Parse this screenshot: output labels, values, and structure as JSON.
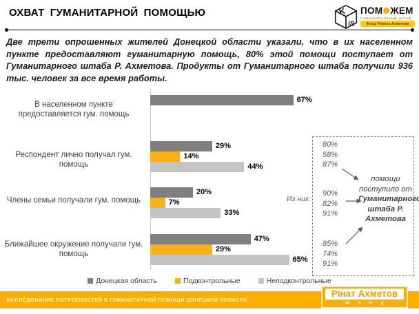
{
  "header": {
    "title": "ОХВАТ ГУМАНИТАРНОЙ ПОМОЩЬЮ",
    "kiis": {
      "letter_k": "K",
      "letter_is": "iS"
    },
    "pomozhem": {
      "word_left": "ПОМ",
      "word_right": "ЖЕМ",
      "subtitle": "ГУМАНИТАРНЫЙ ШТАБ",
      "badge": "Фонд Рината Ахметова"
    }
  },
  "intro": {
    "text": "Две трети опрошенных жителей Донецкой области указали, что в их населенном пункте предоставляют гуманитарную помощь, 80% этой помощи поступает от Гуманитарного штаба Р. Ахметова. Продукты от Гуманитарного штаба получили 936 тыс. человек за все время работы."
  },
  "chart_data": {
    "type": "bar",
    "orientation": "horizontal",
    "unit": "%",
    "xlim": [
      0,
      70
    ],
    "grid": false,
    "legend_position": "bottom",
    "categories": [
      [
        "В населенном пункте",
        "предоставляется гум. помощь"
      ],
      [
        "Респондент лично получал гум.",
        "помощь"
      ],
      [
        "Члены семьи получали гум. помощь"
      ],
      [
        "Ближайшее окружение получали гум.",
        "помощь"
      ]
    ],
    "series": [
      {
        "name": "Донецкая область",
        "color": "#7F7F7F",
        "values": [
          67,
          29,
          20,
          47
        ]
      },
      {
        "name": "Подконтрольные",
        "color": "#FBB116",
        "values": [
          null,
          14,
          7,
          29
        ]
      },
      {
        "name": "Неподконтрольные",
        "color": "#C3C3C3",
        "values": [
          null,
          44,
          33,
          65
        ]
      }
    ]
  },
  "annotation": {
    "intro_label": "Из них:",
    "stacks": [
      [
        "80%",
        "58%",
        "87%"
      ],
      [
        "90%",
        "82%",
        "91%"
      ],
      [
        "85%",
        "74%",
        "91%"
      ]
    ],
    "text_regular": "помощи поступило от",
    "text_bold": "Гуманитарного штаба Р. Ахметова"
  },
  "footer": {
    "bar_text": "ИССЛЕДОВАНИЕ ПОТРЕБНОСТЕЙ В ГУМАНИТАРНОЙ ПОМОЩИ ДОНЕЦКОЙ ОБЛАСТИ",
    "bar_color": "#F9AE00",
    "logo": {
      "title": "Рінат Ахметов",
      "subtitle": "Ф О Н Д"
    }
  }
}
